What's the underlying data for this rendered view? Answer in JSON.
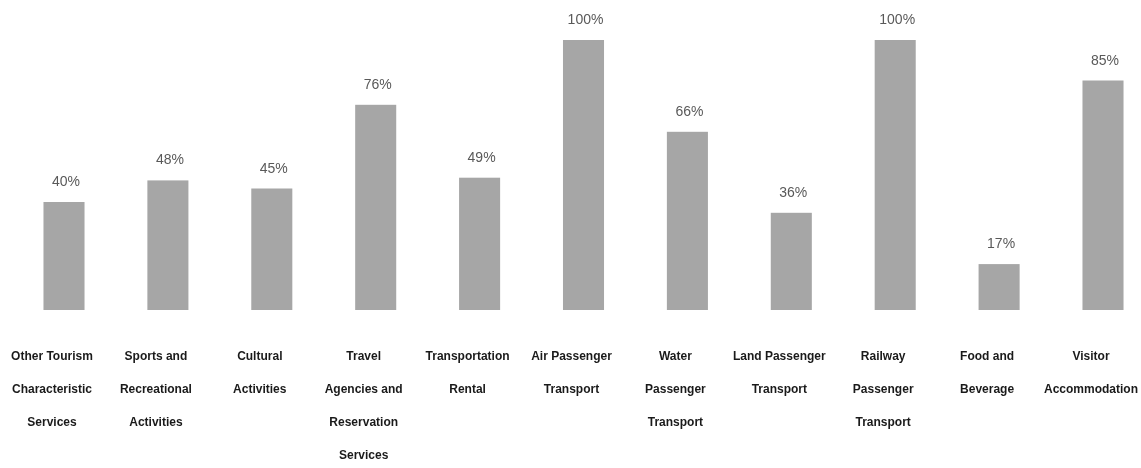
{
  "chart_data": {
    "type": "bar",
    "categories": [
      "Other Tourism\nCharacteristic\nServices",
      "Sports and\nRecreational\nActivities",
      "Cultural\nActivities",
      "Travel\nAgencies and\nReservation\nServices",
      "Transportation\nRental",
      "Air Passenger\nTransport",
      "Water\nPassenger\nTransport",
      "Land Passenger\nTransport",
      "Railway\nPassenger\nTransport",
      "Food and\nBeverage",
      "Visitor\nAccommodation"
    ],
    "values": [
      40,
      48,
      45,
      76,
      49,
      100,
      66,
      36,
      100,
      17,
      85
    ],
    "value_labels": [
      "40%",
      "48%",
      "45%",
      "76%",
      "49%",
      "100%",
      "66%",
      "36%",
      "100%",
      "17%",
      "85%"
    ],
    "color": "#a6a6a6"
  }
}
